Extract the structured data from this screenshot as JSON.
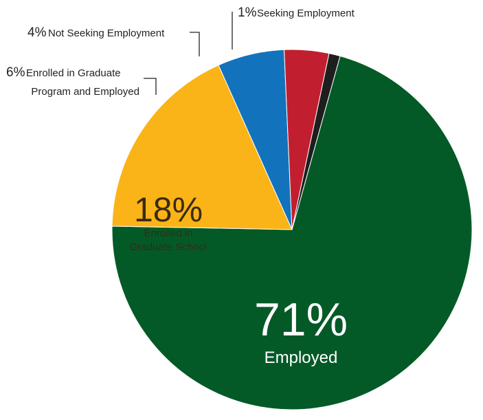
{
  "chart_data": {
    "type": "pie",
    "slices": [
      {
        "id": "employed",
        "value": 71,
        "pct_text": "71%",
        "label_lines": [
          "Employed"
        ],
        "color": "#045A27"
      },
      {
        "id": "grad-school",
        "value": 18,
        "pct_text": "18%",
        "label_lines": [
          "Enrolled in",
          "Graduate School"
        ],
        "color": "#FAB417"
      },
      {
        "id": "grad-employed",
        "value": 6,
        "pct_text": "6%",
        "label_lines": [
          "Enrolled in Graduate",
          "Program and Employed"
        ],
        "color": "#1273BC"
      },
      {
        "id": "not-seeking",
        "value": 4,
        "pct_text": "4%",
        "label_lines": [
          "Not Seeking Employment"
        ],
        "color": "#C11F30"
      },
      {
        "id": "seeking",
        "value": 1,
        "pct_text": "1%",
        "label_lines": [
          "Seeking Employment"
        ],
        "color": "#1E1E1E"
      }
    ]
  }
}
